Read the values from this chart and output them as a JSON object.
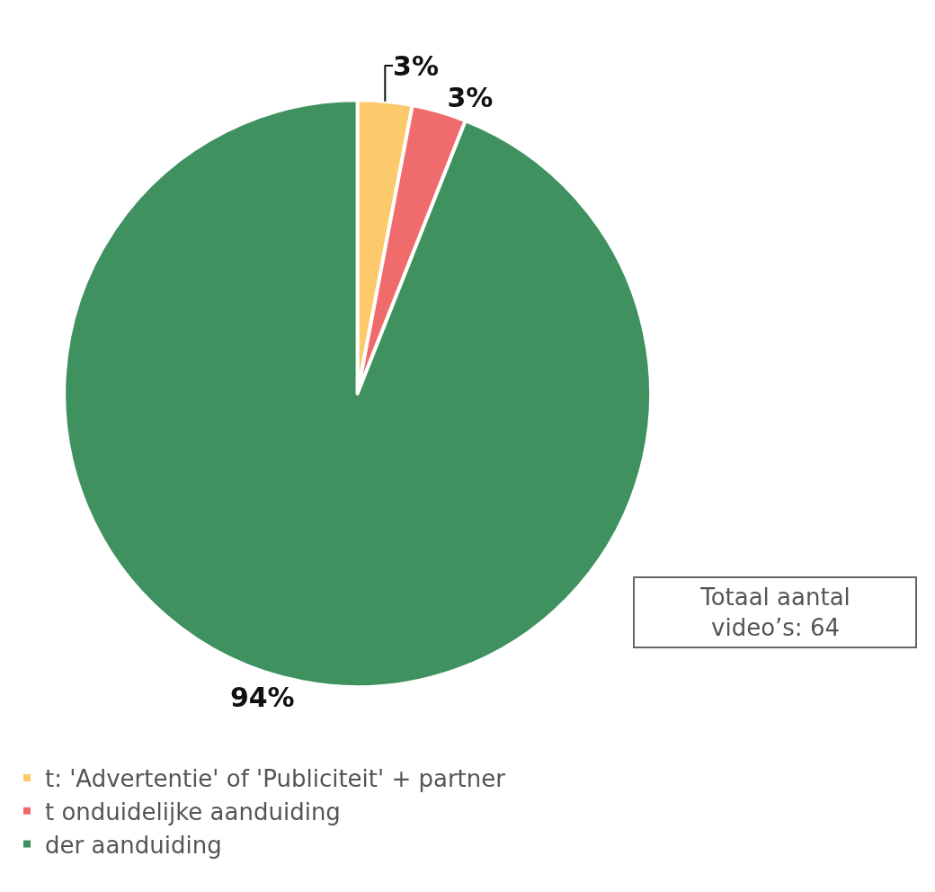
{
  "chart_data": {
    "type": "pie",
    "categories": [
      "t: 'Advertentie' of 'Publiciteit' + partner",
      "t onduidelijke aanduiding",
      "der aanduiding"
    ],
    "values": [
      3,
      3,
      94
    ],
    "colors": [
      "#fcc96b",
      "#f06b6b",
      "#3f9160"
    ],
    "value_labels": [
      "3%",
      "3%",
      "94%"
    ],
    "annotations": [
      "Totaal aantal\nvideo’s: 64"
    ],
    "legend": "bottom left"
  }
}
